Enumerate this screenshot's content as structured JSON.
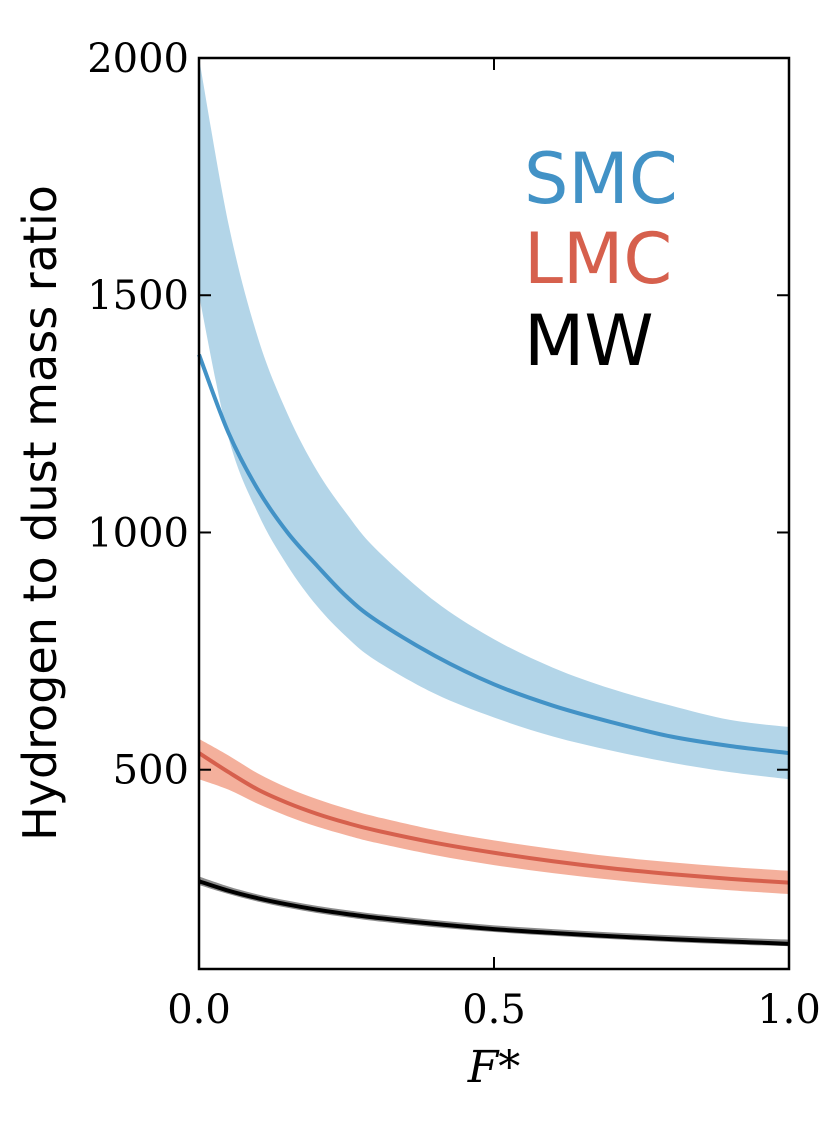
{
  "chart_data": {
    "type": "line",
    "title": "",
    "xlabel": "F*",
    "ylabel": "Hydrogen to dust mass ratio",
    "xlim": [
      0.0,
      1.0
    ],
    "ylim": [
      80,
      2000
    ],
    "xticks": [
      0.0,
      0.5,
      1.0
    ],
    "xtick_labels": [
      "0.0",
      "0.5",
      "1.0"
    ],
    "yticks": [
      500,
      1000,
      1500,
      2000
    ],
    "ytick_labels": [
      "500",
      "1000",
      "1500",
      "2000"
    ],
    "legend_position": "top-right",
    "series": [
      {
        "name": "SMC",
        "color": "#4292c6",
        "band_color": "#b3d5e8",
        "x": [
          0.0,
          0.05,
          0.1,
          0.15,
          0.2,
          0.25,
          0.3,
          0.4,
          0.5,
          0.6,
          0.7,
          0.8,
          0.9,
          1.0
        ],
        "line": [
          1375,
          1210,
          1090,
          1000,
          930,
          865,
          815,
          740,
          680,
          635,
          600,
          570,
          550,
          535
        ],
        "lower": [
          1500,
          1200,
          1040,
          930,
          845,
          780,
          730,
          660,
          610,
          570,
          540,
          515,
          495,
          480
        ],
        "upper": [
          2000,
          1650,
          1410,
          1250,
          1130,
          1040,
          965,
          855,
          775,
          715,
          670,
          635,
          605,
          590
        ]
      },
      {
        "name": "LMC",
        "color": "#d6604d",
        "band_color": "#f4b09c",
        "x": [
          0.0,
          0.05,
          0.1,
          0.15,
          0.2,
          0.25,
          0.3,
          0.4,
          0.5,
          0.6,
          0.7,
          0.8,
          0.9,
          1.0
        ],
        "line": [
          535,
          495,
          458,
          430,
          407,
          388,
          372,
          346,
          325,
          307,
          292,
          280,
          270,
          262
        ],
        "lower": [
          480,
          458,
          428,
          402,
          380,
          362,
          346,
          320,
          299,
          282,
          268,
          256,
          246,
          238
        ],
        "upper": [
          565,
          530,
          492,
          462,
          438,
          418,
          401,
          373,
          351,
          333,
          317,
          305,
          295,
          287
        ]
      },
      {
        "name": "MW",
        "color": "#000000",
        "band_color": "#8c8c8c",
        "x": [
          0.0,
          0.05,
          0.1,
          0.15,
          0.2,
          0.25,
          0.3,
          0.4,
          0.5,
          0.6,
          0.7,
          0.8,
          0.9,
          1.0
        ],
        "line": [
          265,
          245,
          229,
          216,
          205,
          196,
          188,
          175,
          164,
          156,
          149,
          143,
          138,
          133
        ],
        "lower": [
          257,
          238,
          222,
          209,
          198,
          189,
          181,
          168,
          158,
          150,
          143,
          137,
          132,
          128
        ],
        "upper": [
          275,
          254,
          237,
          224,
          213,
          204,
          196,
          183,
          172,
          164,
          157,
          151,
          146,
          142
        ]
      }
    ]
  }
}
